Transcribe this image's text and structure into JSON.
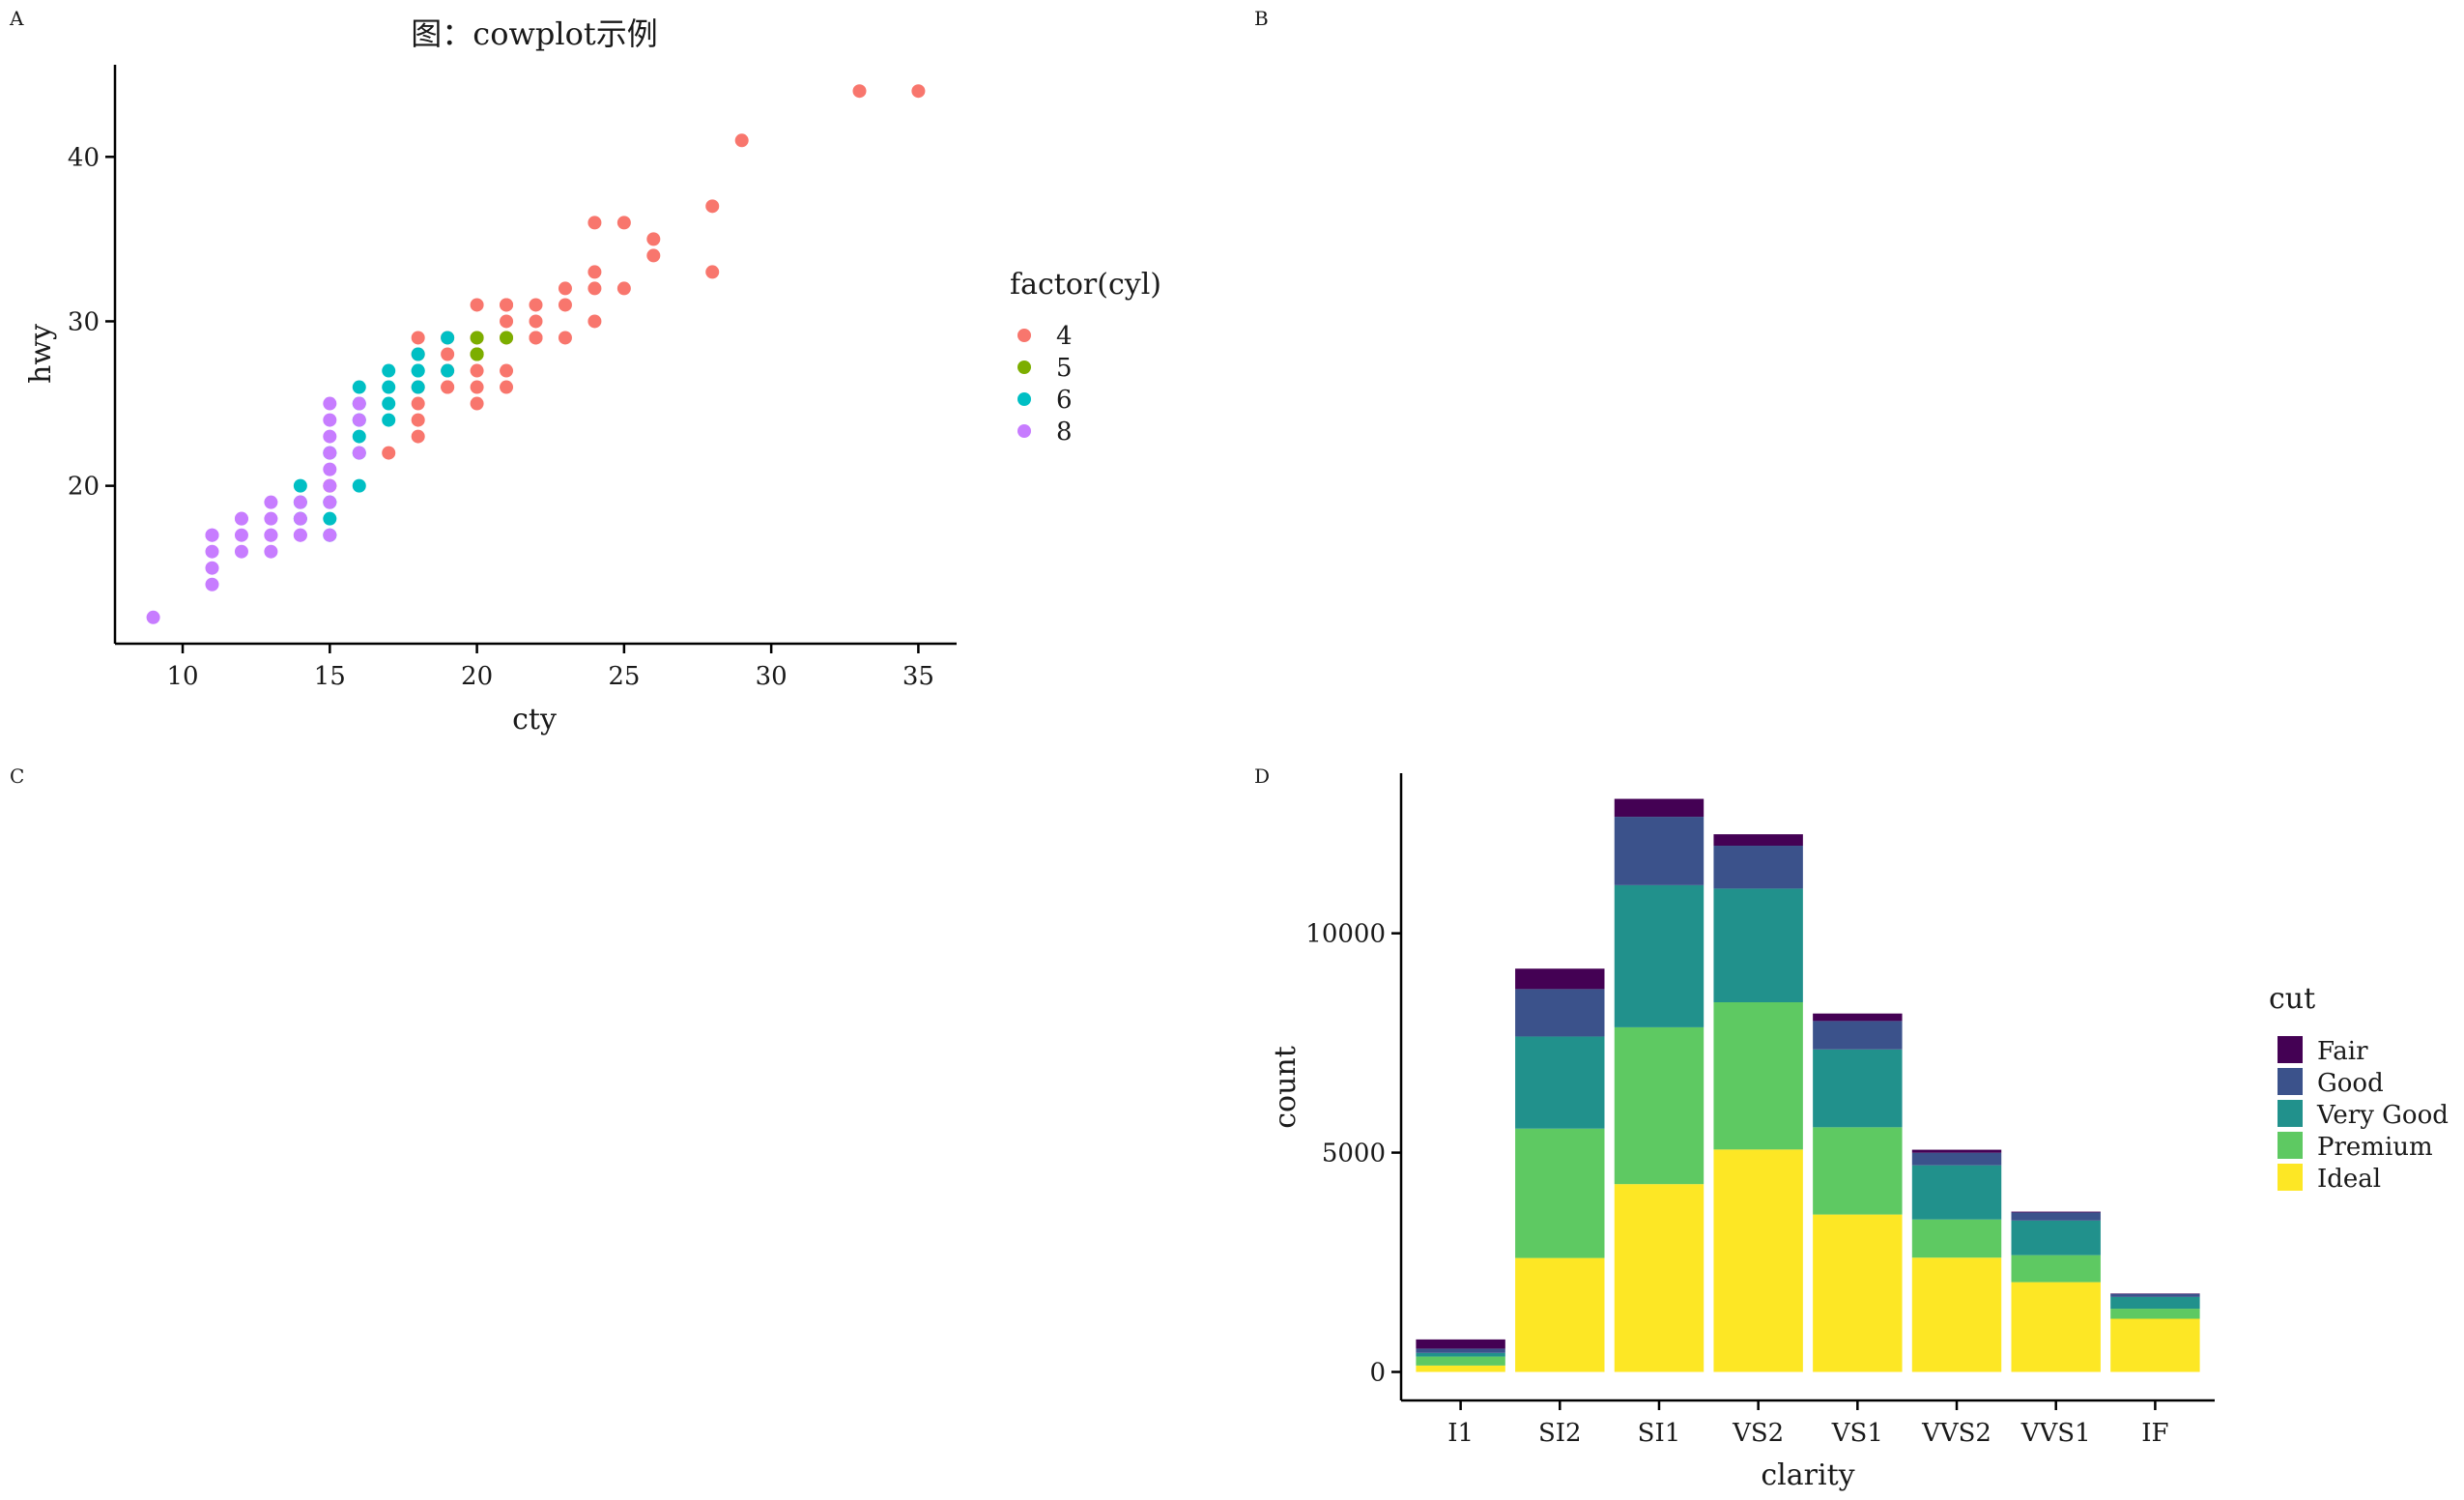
{
  "panels": {
    "a": {
      "tag": "A"
    },
    "b": {
      "tag": "B"
    },
    "c": {
      "tag": "C"
    },
    "d": {
      "tag": "D"
    }
  },
  "chart_data": [
    {
      "type": "scatter",
      "panel": "A",
      "title": "图：cowplot示例",
      "xlabel": "cty",
      "ylabel": "hwy",
      "xlim": [
        7.7,
        36.3
      ],
      "ylim": [
        10.4,
        45.6
      ],
      "x_ticks": [
        10,
        15,
        20,
        25,
        30,
        35
      ],
      "y_ticks": [
        20,
        30,
        40
      ],
      "grid": false,
      "legend_title": "factor(cyl)",
      "legend_position": "right",
      "series": [
        {
          "name": "4",
          "color": "#F8766D",
          "points": [
            [
              18,
              29
            ],
            [
              21,
              29
            ],
            [
              20,
              31
            ],
            [
              21,
              30
            ],
            [
              18,
              26
            ],
            [
              19,
              26
            ],
            [
              18,
              25
            ],
            [
              17,
              22
            ],
            [
              18,
              28
            ],
            [
              19,
              27
            ],
            [
              19,
              26
            ],
            [
              20,
              25
            ],
            [
              21,
              27
            ],
            [
              21,
              26
            ],
            [
              21,
              31
            ],
            [
              22,
              30
            ],
            [
              22,
              29
            ],
            [
              23,
              31
            ],
            [
              23,
              32
            ],
            [
              24,
              32
            ],
            [
              24,
              33
            ],
            [
              24,
              30
            ],
            [
              25,
              32
            ],
            [
              25,
              36
            ],
            [
              24,
              36
            ],
            [
              26,
              35
            ],
            [
              26,
              34
            ],
            [
              28,
              37
            ],
            [
              28,
              33
            ],
            [
              29,
              41
            ],
            [
              33,
              44
            ],
            [
              35,
              44
            ],
            [
              20,
              29
            ],
            [
              20,
              28
            ],
            [
              20,
              27
            ],
            [
              20,
              26
            ],
            [
              22,
              31
            ],
            [
              23,
              29
            ],
            [
              21,
              31
            ],
            [
              19,
              29
            ],
            [
              19,
              28
            ],
            [
              15,
              20
            ],
            [
              18,
              24
            ],
            [
              18,
              23
            ],
            [
              22,
              29
            ]
          ]
        },
        {
          "name": "5",
          "color": "#7CAE00",
          "points": [
            [
              20,
              29
            ],
            [
              20,
              28
            ],
            [
              21,
              29
            ],
            [
              20,
              28
            ]
          ]
        },
        {
          "name": "6",
          "color": "#00BFC4",
          "points": [
            [
              16,
              26
            ],
            [
              17,
              27
            ],
            [
              18,
              27
            ],
            [
              19,
              29
            ],
            [
              18,
              26
            ],
            [
              17,
              25
            ],
            [
              16,
              25
            ],
            [
              17,
              24
            ],
            [
              16,
              23
            ],
            [
              15,
              19
            ],
            [
              15,
              18
            ],
            [
              15,
              17
            ],
            [
              16,
              20
            ],
            [
              14,
              18
            ],
            [
              14,
              19
            ],
            [
              14,
              20
            ],
            [
              16,
              24
            ],
            [
              18,
              27
            ],
            [
              18,
              28
            ],
            [
              19,
              27
            ],
            [
              17,
              26
            ],
            [
              16,
              22
            ],
            [
              15,
              22
            ]
          ]
        },
        {
          "name": "8",
          "color": "#C77CFF",
          "points": [
            [
              9,
              12
            ],
            [
              11,
              14
            ],
            [
              11,
              15
            ],
            [
              11,
              16
            ],
            [
              11,
              17
            ],
            [
              12,
              16
            ],
            [
              12,
              17
            ],
            [
              12,
              18
            ],
            [
              13,
              16
            ],
            [
              13,
              17
            ],
            [
              13,
              18
            ],
            [
              13,
              19
            ],
            [
              14,
              17
            ],
            [
              14,
              18
            ],
            [
              14,
              19
            ],
            [
              15,
              20
            ],
            [
              15,
              21
            ],
            [
              15,
              22
            ],
            [
              15,
              23
            ],
            [
              15,
              24
            ],
            [
              15,
              25
            ],
            [
              16,
              24
            ],
            [
              16,
              25
            ],
            [
              15,
              19
            ],
            [
              14,
              17
            ],
            [
              13,
              17
            ],
            [
              12,
              18
            ],
            [
              11,
              17
            ],
            [
              15,
              17
            ],
            [
              16,
              22
            ]
          ]
        }
      ]
    },
    {
      "type": "bar",
      "stacked": true,
      "panel": "D",
      "xlabel": "clarity",
      "ylabel": "count",
      "ylim": [
        -650,
        13650
      ],
      "y_ticks": [
        0,
        5000,
        10000
      ],
      "grid": false,
      "legend_title": "cut",
      "legend_position": "right",
      "categories": [
        "I1",
        "SI2",
        "SI1",
        "VS2",
        "VS1",
        "VVS2",
        "VVS1",
        "IF"
      ],
      "series": [
        {
          "name": "Ideal",
          "color": "#FDE725",
          "values": [
            146,
            2598,
            4282,
            5071,
            3589,
            2606,
            2047,
            1212
          ]
        },
        {
          "name": "Premium",
          "color": "#5EC962",
          "values": [
            205,
            2949,
            3575,
            3357,
            1989,
            870,
            616,
            230
          ]
        },
        {
          "name": "Very Good",
          "color": "#21918C",
          "values": [
            84,
            2100,
            3240,
            2591,
            1775,
            1235,
            789,
            268
          ]
        },
        {
          "name": "Good",
          "color": "#3B528B",
          "values": [
            96,
            1081,
            1560,
            978,
            648,
            286,
            186,
            71
          ]
        },
        {
          "name": "Fair",
          "color": "#440154",
          "values": [
            210,
            466,
            408,
            261,
            170,
            69,
            17,
            9
          ]
        }
      ]
    }
  ]
}
